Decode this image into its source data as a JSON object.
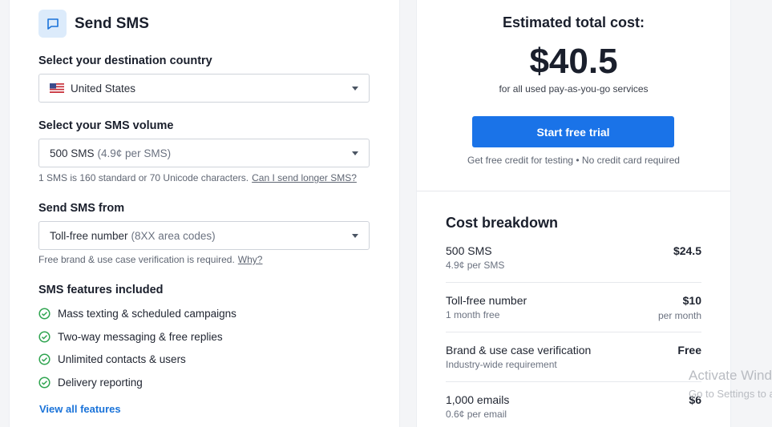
{
  "header": {
    "title": "Send SMS",
    "icon": "chat-icon"
  },
  "country": {
    "label": "Select your destination country",
    "value": "United States",
    "flag": "us-flag-icon"
  },
  "volume": {
    "label": "Select your SMS volume",
    "value": "500 SMS",
    "detail": "(4.9¢ per SMS)",
    "hint": "1 SMS is 160 standard or 70 Unicode characters.",
    "hint_link": "Can I send longer SMS?"
  },
  "sender": {
    "label": "Send SMS from",
    "value": "Toll-free number",
    "detail": "(8XX area codes)",
    "hint": "Free brand & use case verification is required.",
    "hint_link": "Why?"
  },
  "features": {
    "title": "SMS features included",
    "items": [
      "Mass texting & scheduled campaigns",
      "Two-way messaging & free replies",
      "Unlimited contacts & users",
      "Delivery reporting"
    ],
    "link": "View all features"
  },
  "estimate": {
    "title": "Estimated total cost:",
    "price": "$40.5",
    "subtitle": "for all used pay-as-you-go services",
    "cta": "Start free trial",
    "cta_sub": "Get free credit for testing • No credit card required"
  },
  "breakdown": {
    "title": "Cost breakdown",
    "rows": [
      {
        "name": "500 SMS",
        "sub": "4.9¢ per SMS",
        "value": "$24.5",
        "value_sub": ""
      },
      {
        "name": "Toll-free number",
        "sub": "1 month free",
        "value": "$10",
        "value_sub": "per month"
      },
      {
        "name": "Brand & use case verification",
        "sub": "Industry-wide requirement",
        "value": "Free",
        "value_sub": ""
      },
      {
        "name": "1,000 emails",
        "sub": "0.6¢ per email",
        "value": "$6",
        "value_sub": ""
      }
    ]
  },
  "os_watermark": {
    "line1": "Activate Windows",
    "line2": "Go to Settings to activate Windows."
  },
  "colors": {
    "accent": "#1a73e8",
    "check": "#2ea44f",
    "icon_bg": "#dcebfb"
  }
}
